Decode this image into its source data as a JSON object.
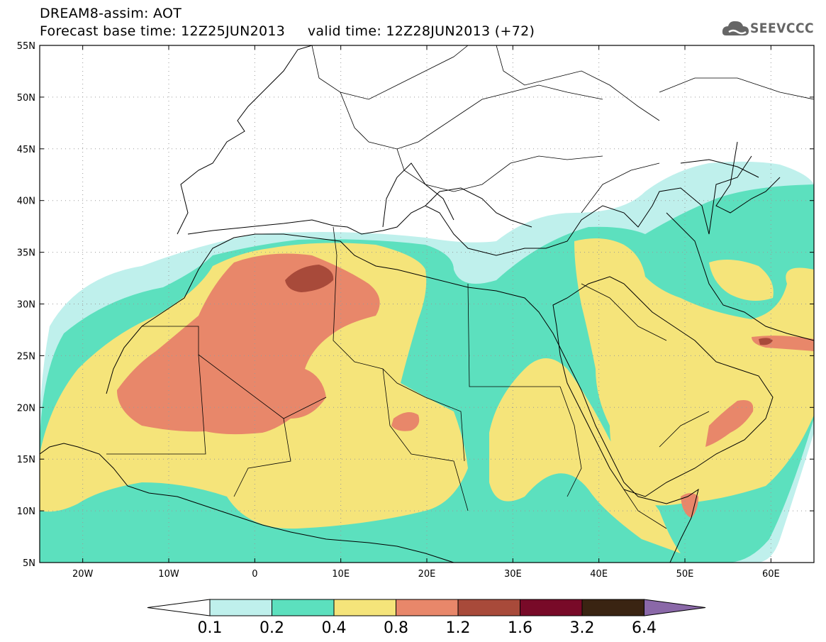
{
  "header": {
    "title": "DREAM8-assim: AOT",
    "subtitle": "Forecast base time: 12Z25JUN2013     valid time: 12Z28JUN2013 (+72)",
    "logo_text": "SEEVCCC"
  },
  "map": {
    "lon_range": [
      -25,
      65
    ],
    "lat_range": [
      5,
      55
    ],
    "grid": "dotted",
    "lat_ticks": [
      "55N",
      "50N",
      "45N",
      "40N",
      "35N",
      "30N",
      "25N",
      "20N",
      "15N",
      "10N",
      "5N"
    ],
    "lon_ticks": [
      "20W",
      "10W",
      "0",
      "10E",
      "20E",
      "30E",
      "40E",
      "50E",
      "60E"
    ]
  },
  "colorbar": {
    "labels": [
      "0.1",
      "0.2",
      "0.4",
      "0.8",
      "1.2",
      "1.6",
      "3.2",
      "6.4"
    ],
    "colors": [
      "#ffffff",
      "#bff0ec",
      "#5ce0be",
      "#f5e47a",
      "#e8876a",
      "#a84a3a",
      "#780a28",
      "#3a2412",
      "#8a68a8"
    ]
  },
  "colors": {
    "lightcyan": "#bff0ec",
    "green": "#5ce0be",
    "yellow": "#f5e47a",
    "salmon": "#e8876a",
    "brick": "#a84a3a"
  }
}
